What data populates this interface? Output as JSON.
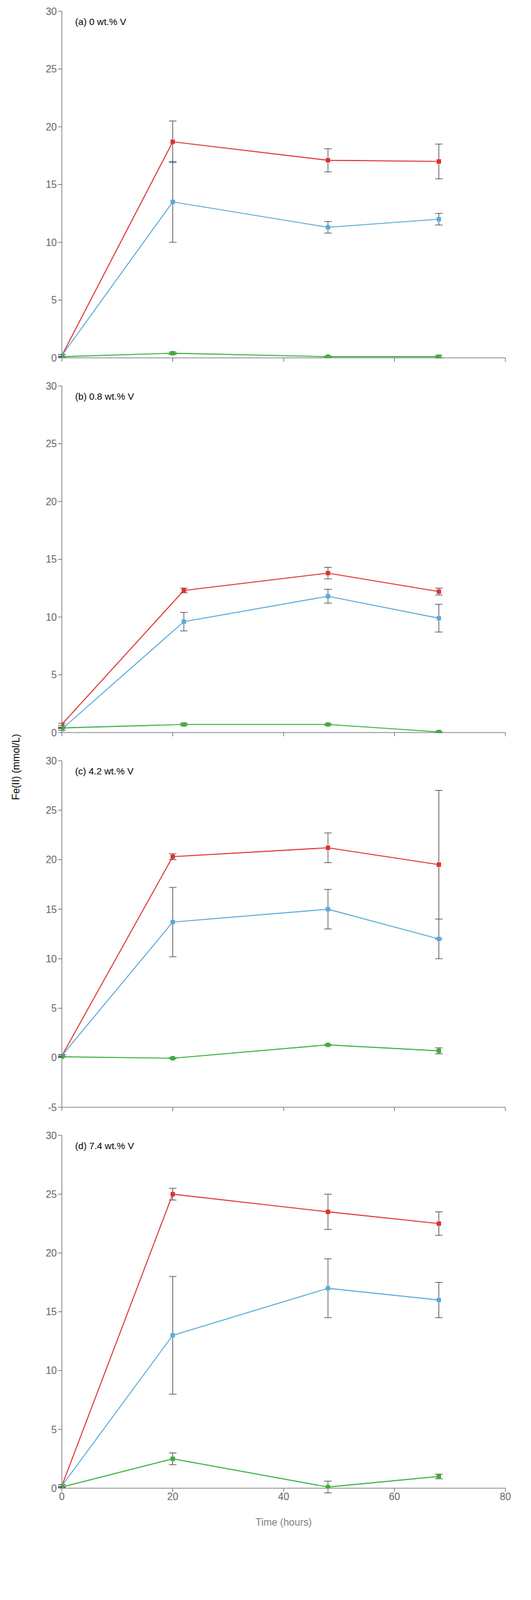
{
  "chart_data": [
    {
      "type": "line",
      "annotation": "(a) 0 wt.% V",
      "y_label": "Fe(II) (mmol/L)",
      "x": [
        0,
        20,
        48,
        68
      ],
      "series": [
        {
          "color": "#e03030",
          "marker": "square",
          "values": [
            0.2,
            18.7,
            17.1,
            17.0
          ],
          "errors": [
            0.1,
            1.8,
            1.0,
            1.5
          ]
        },
        {
          "color": "#5baad8",
          "marker": "square",
          "values": [
            0.2,
            13.5,
            11.3,
            12.0
          ],
          "errors": [
            0.1,
            3.5,
            0.5,
            0.5
          ]
        },
        {
          "color": "#3ab03a",
          "marker": "square",
          "values": [
            0.1,
            0.4,
            0.1,
            0.1
          ],
          "errors": [
            0.05,
            0.1,
            0.05,
            0.1
          ]
        }
      ],
      "xlim": [
        0,
        80
      ],
      "xticks": [
        0,
        20,
        40,
        60,
        80
      ],
      "ylim": [
        0,
        30
      ],
      "yticks": [
        0,
        5,
        10,
        15,
        20,
        25,
        30
      ],
      "tick_labels": "y"
    },
    {
      "type": "line",
      "annotation": "(b) 0.8 wt.% V",
      "x": [
        0,
        22,
        48,
        68
      ],
      "series": [
        {
          "color": "#e03030",
          "marker": "square",
          "values": [
            0.7,
            12.3,
            13.8,
            12.2
          ],
          "errors": [
            0.1,
            0.2,
            0.5,
            0.3
          ]
        },
        {
          "color": "#5baad8",
          "marker": "square",
          "values": [
            0.3,
            9.6,
            11.8,
            9.9
          ],
          "errors": [
            0.1,
            0.8,
            0.6,
            1.2
          ]
        },
        {
          "color": "#3ab03a",
          "marker": "square",
          "values": [
            0.4,
            0.7,
            0.7,
            0.05
          ],
          "errors": [
            0.05,
            0.1,
            0.05,
            0.05
          ]
        }
      ],
      "xlim": [
        0,
        80
      ],
      "xticks": [
        0,
        20,
        40,
        60,
        80
      ],
      "ylim": [
        0,
        30
      ],
      "yticks": [
        0,
        5,
        10,
        15,
        20,
        25,
        30
      ],
      "tick_labels": "y"
    },
    {
      "type": "line",
      "annotation": "(c) 4.2 wt.% V",
      "x": [
        0,
        20,
        48,
        68
      ],
      "series": [
        {
          "color": "#e03030",
          "marker": "square",
          "values": [
            0.2,
            20.3,
            21.2,
            19.5
          ],
          "errors": [
            0.1,
            0.3,
            1.5,
            7.5
          ]
        },
        {
          "color": "#5baad8",
          "marker": "square",
          "values": [
            0.2,
            13.7,
            15.0,
            12.0
          ],
          "errors": [
            0.1,
            3.5,
            2.0,
            2.0
          ]
        },
        {
          "color": "#3ab03a",
          "marker": "square",
          "values": [
            0.1,
            -0.05,
            1.3,
            0.7
          ],
          "errors": [
            0.05,
            0.05,
            0.05,
            0.3
          ]
        }
      ],
      "xlim": [
        0,
        80
      ],
      "xticks": [
        0,
        20,
        40,
        60,
        80
      ],
      "ylim": [
        -5,
        30
      ],
      "yticks": [
        -5,
        0,
        5,
        10,
        15,
        20,
        25,
        30
      ],
      "tick_labels": "y"
    },
    {
      "type": "line",
      "annotation": "(d) 7.4 wt.% V",
      "x_label": "Time (hours)",
      "x": [
        0,
        20,
        48,
        68
      ],
      "series": [
        {
          "color": "#e03030",
          "marker": "square",
          "values": [
            0.2,
            25.0,
            23.5,
            22.5
          ],
          "errors": [
            0.1,
            0.5,
            1.5,
            1.0
          ]
        },
        {
          "color": "#5baad8",
          "marker": "square",
          "values": [
            0.2,
            13.0,
            17.0,
            16.0
          ],
          "errors": [
            0.1,
            5.0,
            2.5,
            1.5
          ]
        },
        {
          "color": "#3ab03a",
          "marker": "square",
          "values": [
            0.1,
            2.5,
            0.1,
            1.0
          ],
          "errors": [
            0.05,
            0.5,
            0.5,
            0.2
          ]
        }
      ],
      "xlim": [
        0,
        80
      ],
      "xticks": [
        0,
        20,
        40,
        60,
        80
      ],
      "ylim": [
        0,
        30
      ],
      "yticks": [
        0,
        5,
        10,
        15,
        20,
        25,
        30
      ]
    }
  ]
}
